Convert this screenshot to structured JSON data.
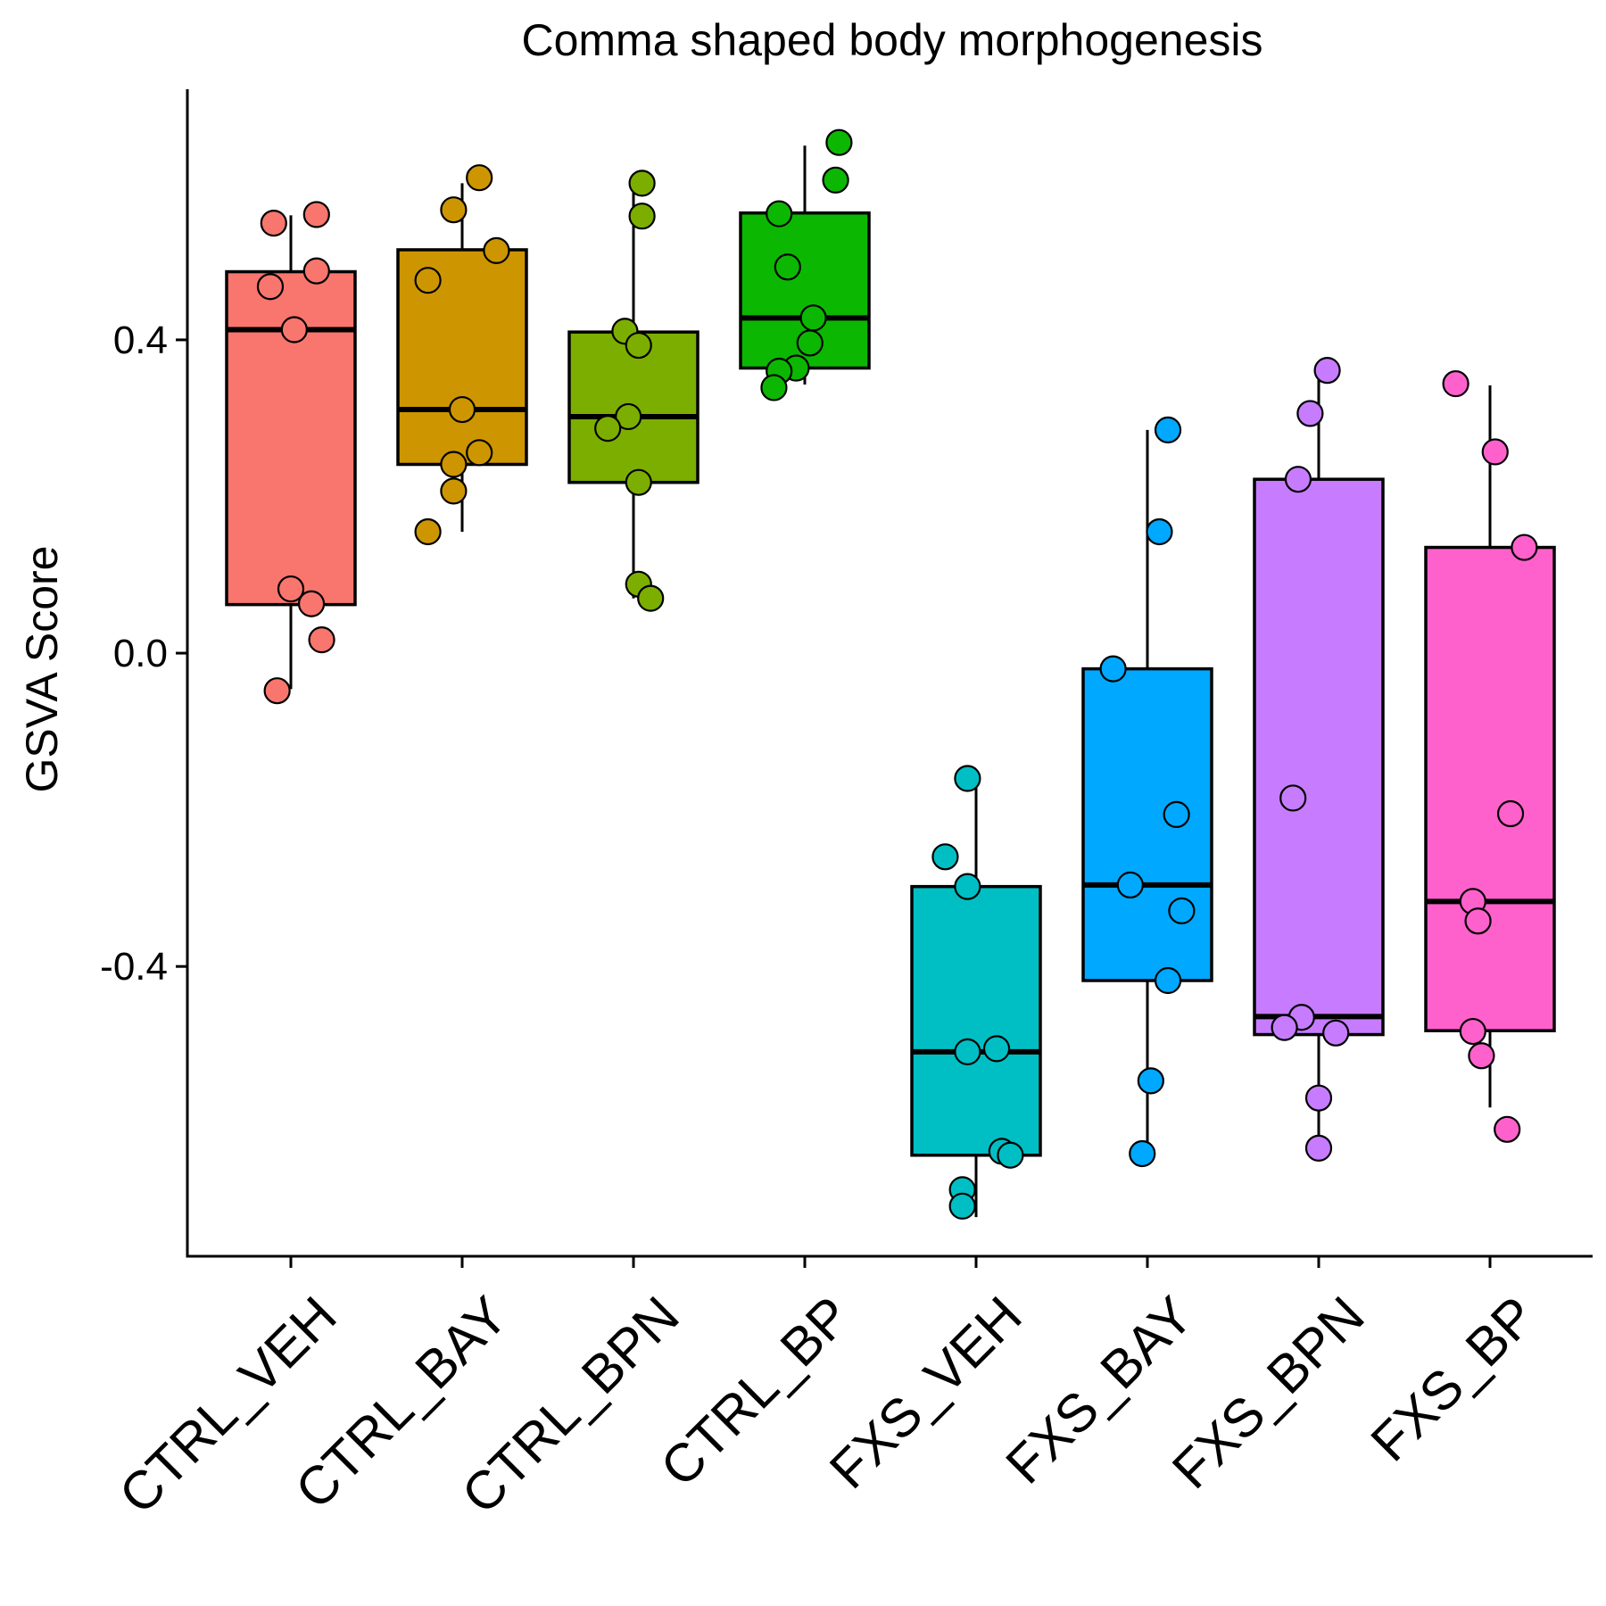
{
  "chart_data": {
    "type": "box",
    "title": "Comma shaped body morphogenesis",
    "xlabel": "",
    "ylabel": "GSVA Score",
    "ylim": [
      -0.77,
      0.72
    ],
    "yticks": [
      -0.4,
      0.0,
      0.4
    ],
    "ytick_labels": [
      "-0.4",
      "0.0",
      "0.4"
    ],
    "grid": false,
    "legend": "none",
    "categories": [
      "CTRL_VEH",
      "CTRL_BAY",
      "CTRL_BPN",
      "CTRL_BP",
      "FXS_VEH",
      "FXS_BAY",
      "FXS_BPN",
      "FXS_BP"
    ],
    "groups": [
      {
        "name": "CTRL_VEH",
        "color": "#F8766D",
        "box": {
          "min": -0.046,
          "q1": 0.062,
          "median": 0.413,
          "q3": 0.487,
          "max": 0.559
        },
        "points": [
          [
            -0.1,
            0.549
          ],
          [
            0.15,
            0.56
          ],
          [
            -0.12,
            0.468
          ],
          [
            0.15,
            0.488
          ],
          [
            0.02,
            0.413
          ],
          [
            0.0,
            0.082
          ],
          [
            0.12,
            0.063
          ],
          [
            0.18,
            0.017
          ],
          [
            -0.08,
            -0.048
          ]
        ]
      },
      {
        "name": "CTRL_BAY",
        "color": "#CD9600",
        "box": {
          "min": 0.155,
          "q1": 0.241,
          "median": 0.311,
          "q3": 0.515,
          "max": 0.6
        },
        "points": [
          [
            0.1,
            0.607
          ],
          [
            -0.05,
            0.566
          ],
          [
            0.2,
            0.514
          ],
          [
            -0.2,
            0.476
          ],
          [
            0.0,
            0.311
          ],
          [
            0.1,
            0.256
          ],
          [
            -0.05,
            0.241
          ],
          [
            -0.05,
            0.207
          ],
          [
            -0.2,
            0.155
          ]
        ]
      },
      {
        "name": "CTRL_BPN",
        "color": "#7CAE00",
        "box": {
          "min": 0.07,
          "q1": 0.218,
          "median": 0.302,
          "q3": 0.41,
          "max": 0.603
        },
        "points": [
          [
            0.05,
            0.6
          ],
          [
            0.05,
            0.558
          ],
          [
            -0.05,
            0.411
          ],
          [
            0.03,
            0.393
          ],
          [
            -0.03,
            0.302
          ],
          [
            -0.15,
            0.287
          ],
          [
            0.03,
            0.218
          ],
          [
            0.03,
            0.088
          ],
          [
            0.1,
            0.07
          ]
        ]
      },
      {
        "name": "CTRL_BP",
        "color": "#0CB702",
        "box": {
          "min": 0.343,
          "q1": 0.364,
          "median": 0.428,
          "q3": 0.562,
          "max": 0.648
        },
        "points": [
          [
            0.2,
            0.652
          ],
          [
            0.18,
            0.604
          ],
          [
            -0.15,
            0.561
          ],
          [
            -0.1,
            0.493
          ],
          [
            0.05,
            0.428
          ],
          [
            0.03,
            0.396
          ],
          [
            -0.05,
            0.364
          ],
          [
            -0.15,
            0.36
          ],
          [
            -0.18,
            0.339
          ]
        ]
      },
      {
        "name": "FXS_VEH",
        "color": "#00BFC4",
        "box": {
          "min": -0.72,
          "q1": -0.641,
          "median": -0.509,
          "q3": -0.298,
          "max": -0.158
        },
        "points": [
          [
            -0.05,
            -0.16
          ],
          [
            -0.18,
            -0.26
          ],
          [
            -0.05,
            -0.298
          ],
          [
            -0.05,
            -0.509
          ],
          [
            0.12,
            -0.505
          ],
          [
            0.15,
            -0.636
          ],
          [
            0.2,
            -0.641
          ],
          [
            -0.08,
            -0.685
          ],
          [
            -0.08,
            -0.706
          ]
        ]
      },
      {
        "name": "FXS_BAY",
        "color": "#00A9FF",
        "box": {
          "min": -0.637,
          "q1": -0.418,
          "median": -0.296,
          "q3": -0.02,
          "max": 0.285
        },
        "points": [
          [
            0.12,
            0.285
          ],
          [
            0.07,
            0.155
          ],
          [
            -0.2,
            -0.02
          ],
          [
            0.17,
            -0.206
          ],
          [
            -0.1,
            -0.296
          ],
          [
            0.2,
            -0.329
          ],
          [
            0.12,
            -0.418
          ],
          [
            0.02,
            -0.546
          ],
          [
            -0.03,
            -0.639
          ]
        ]
      },
      {
        "name": "FXS_BPN",
        "color": "#C77CFF",
        "box": {
          "min": -0.63,
          "q1": -0.487,
          "median": -0.464,
          "q3": 0.222,
          "max": 0.365
        },
        "points": [
          [
            0.05,
            0.361
          ],
          [
            -0.05,
            0.306
          ],
          [
            -0.12,
            0.222
          ],
          [
            -0.15,
            -0.185
          ],
          [
            -0.1,
            -0.465
          ],
          [
            -0.2,
            -0.478
          ],
          [
            0.1,
            -0.485
          ],
          [
            0.0,
            -0.568
          ],
          [
            0.0,
            -0.632
          ]
        ]
      },
      {
        "name": "FXS_BP",
        "color": "#FF61CC",
        "box": {
          "min": -0.58,
          "q1": -0.482,
          "median": -0.317,
          "q3": 0.135,
          "max": 0.342
        },
        "points": [
          [
            -0.2,
            0.344
          ],
          [
            0.03,
            0.257
          ],
          [
            0.2,
            0.135
          ],
          [
            0.12,
            -0.205
          ],
          [
            -0.1,
            -0.317
          ],
          [
            -0.07,
            -0.342
          ],
          [
            -0.1,
            -0.483
          ],
          [
            -0.05,
            -0.514
          ],
          [
            0.1,
            -0.608
          ]
        ]
      }
    ]
  }
}
